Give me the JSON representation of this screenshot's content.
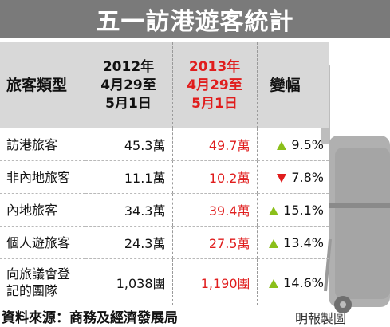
{
  "chart_data": {
    "type": "table",
    "title": "五一訪港遊客統計",
    "columns": [
      "旅客類型",
      "2012年 4月29至 5月1日",
      "2013年 4月29至 5月1日",
      "變幅"
    ],
    "header": {
      "type": "旅客類型",
      "y2012": [
        "2012年",
        "4月29至",
        "5月1日"
      ],
      "y2013": [
        "2013年",
        "4月29至",
        "5月1日"
      ],
      "change": "變幅"
    },
    "rows": [
      {
        "category": "訪港旅客",
        "category_lines": [
          "訪港旅客"
        ],
        "v2012": "45.3萬",
        "v2013": "49.7萬",
        "direction": "up",
        "change": "9.5%"
      },
      {
        "category": "非內地旅客",
        "category_lines": [
          "非內地旅客"
        ],
        "v2012": "11.1萬",
        "v2013": "10.2萬",
        "direction": "down",
        "change": "7.8%"
      },
      {
        "category": "內地旅客",
        "category_lines": [
          "內地旅客"
        ],
        "v2012": "34.3萬",
        "v2013": "39.4萬",
        "direction": "up",
        "change": "15.1%"
      },
      {
        "category": "個人遊旅客",
        "category_lines": [
          "個人遊旅客"
        ],
        "v2012": "24.3萬",
        "v2013": "27.5萬",
        "direction": "up",
        "change": "13.4%"
      },
      {
        "category": "向旅議會登記的團隊",
        "category_lines": [
          "向旅議會登",
          "記的團隊"
        ],
        "v2012": "1,038團",
        "v2013": "1,190團",
        "direction": "up",
        "change": "14.6%"
      }
    ],
    "colors": {
      "highlight_2013": "#e01d1d",
      "up": "#8bbf1a",
      "down": "#e01d1d",
      "header_bg": "#d8d8d8",
      "title_bg": "#7a7a7a"
    }
  },
  "source": "資料來源：商務及經濟發展局",
  "credit": "明報製圖",
  "icons": {
    "illustration": "luggage-icon",
    "up": "triangle-up-icon",
    "down": "triangle-down-icon"
  }
}
